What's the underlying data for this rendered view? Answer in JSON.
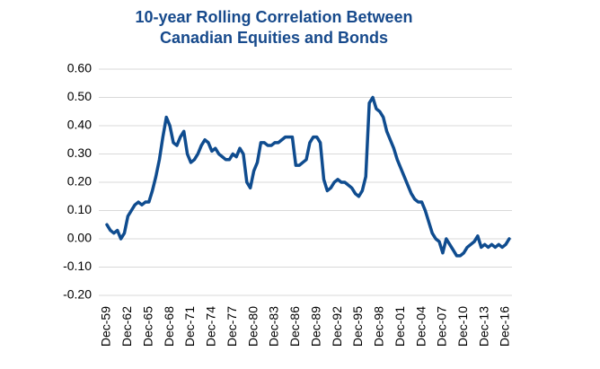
{
  "chart_data": {
    "type": "line",
    "title": [
      "10-year Rolling Correlation Between",
      "Canadian Equities and Bonds"
    ],
    "categories": [
      "Dec-59",
      null,
      null,
      null,
      null,
      null,
      "Dec-62",
      null,
      null,
      null,
      null,
      null,
      "Dec-65",
      null,
      null,
      null,
      null,
      null,
      "Dec-68",
      null,
      null,
      null,
      null,
      null,
      "Dec-71",
      null,
      null,
      null,
      null,
      null,
      "Dec-74",
      null,
      null,
      null,
      null,
      null,
      "Dec-77",
      null,
      null,
      null,
      null,
      null,
      "Dec-80",
      null,
      null,
      null,
      null,
      null,
      "Dec-83",
      null,
      null,
      null,
      null,
      null,
      "Dec-86",
      null,
      null,
      null,
      null,
      null,
      "Dec-89",
      null,
      null,
      null,
      null,
      null,
      "Dec-92",
      null,
      null,
      null,
      null,
      null,
      "Dec-95",
      null,
      null,
      null,
      null,
      null,
      "Dec-98",
      null,
      null,
      null,
      null,
      null,
      "Dec-01",
      null,
      null,
      null,
      null,
      null,
      "Dec-04",
      null,
      null,
      null,
      null,
      null,
      "Dec-07",
      null,
      null,
      null,
      null,
      null,
      "Dec-10",
      null,
      null,
      null,
      null,
      null,
      "Dec-13",
      null,
      null,
      null,
      null,
      null,
      "Dec-16",
      null
    ],
    "values": [
      0.05,
      0.03,
      0.02,
      0.03,
      0.0,
      0.02,
      0.08,
      0.1,
      0.12,
      0.13,
      0.12,
      0.13,
      0.13,
      0.17,
      0.22,
      0.28,
      0.36,
      0.43,
      0.4,
      0.34,
      0.33,
      0.36,
      0.38,
      0.3,
      0.27,
      0.28,
      0.3,
      0.33,
      0.35,
      0.34,
      0.31,
      0.32,
      0.3,
      0.29,
      0.28,
      0.28,
      0.3,
      0.29,
      0.32,
      0.3,
      0.2,
      0.18,
      0.24,
      0.27,
      0.34,
      0.34,
      0.33,
      0.33,
      0.34,
      0.34,
      0.35,
      0.36,
      0.36,
      0.36,
      0.26,
      0.26,
      0.27,
      0.28,
      0.34,
      0.36,
      0.36,
      0.34,
      0.21,
      0.17,
      0.18,
      0.2,
      0.21,
      0.2,
      0.2,
      0.19,
      0.18,
      0.16,
      0.15,
      0.17,
      0.22,
      0.48,
      0.5,
      0.46,
      0.45,
      0.43,
      0.38,
      0.35,
      0.32,
      0.28,
      0.25,
      0.22,
      0.19,
      0.16,
      0.14,
      0.13,
      0.13,
      0.1,
      0.06,
      0.02,
      0.0,
      -0.01,
      -0.05,
      0.0,
      -0.02,
      -0.04,
      -0.06,
      -0.06,
      -0.05,
      -0.03,
      -0.02,
      -0.01,
      0.01,
      -0.03,
      -0.02,
      -0.03,
      -0.02,
      -0.03,
      -0.02,
      -0.03,
      -0.02,
      0.0
    ],
    "color": "#0f4c8f",
    "ylim": [
      -0.2,
      0.6
    ],
    "yticks": [
      {
        "value": -0.2,
        "label": "-0.20"
      },
      {
        "value": -0.1,
        "label": "-0.10"
      },
      {
        "value": 0,
        "label": "0.00"
      },
      {
        "value": 0.1,
        "label": "0.10"
      },
      {
        "value": 0.2,
        "label": "0.20"
      },
      {
        "value": 0.3,
        "label": "0.30"
      },
      {
        "value": 0.4,
        "label": "0.40"
      },
      {
        "value": 0.5,
        "label": "0.50"
      },
      {
        "value": 0.6,
        "label": "0.60"
      }
    ],
    "grid": true
  }
}
